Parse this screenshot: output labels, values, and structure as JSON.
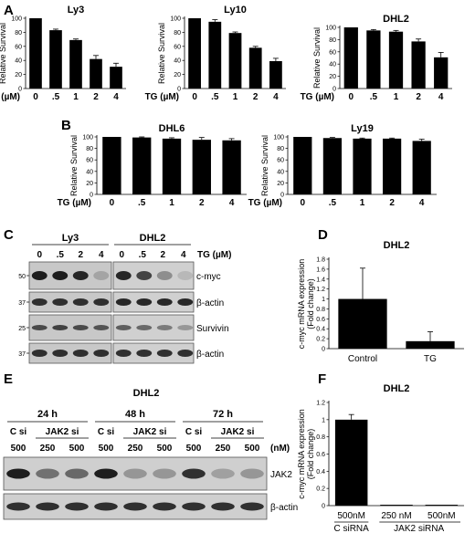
{
  "panels": {
    "A": "A",
    "B": "B",
    "C": "C",
    "D": "D",
    "E": "E",
    "F": "F"
  },
  "chart_data": [
    {
      "panel": "A",
      "type": "bar",
      "title": "Ly3",
      "ylabel": "Relative Survival",
      "xlabel": "TG (µM)",
      "categories": [
        "0",
        ".5",
        "1",
        "2",
        "4"
      ],
      "values": [
        100,
        83,
        69,
        42,
        31
      ],
      "errors": [
        0,
        1.5,
        1.5,
        5,
        5
      ],
      "yticks": [
        "0",
        "20",
        "40",
        "60",
        "80",
        "100"
      ],
      "ylim": [
        0,
        100
      ]
    },
    {
      "panel": "A",
      "type": "bar",
      "title": "Ly10",
      "ylabel": "Relative Survival",
      "xlabel": "TG (µM)",
      "categories": [
        "0",
        ".5",
        "1",
        "2",
        "4"
      ],
      "values": [
        100,
        95,
        79,
        58,
        39
      ],
      "errors": [
        0,
        3,
        1.5,
        2,
        4
      ],
      "yticks": [
        "0",
        "20",
        "40",
        "60",
        "80",
        "100"
      ],
      "ylim": [
        0,
        100
      ]
    },
    {
      "panel": "A",
      "type": "bar",
      "title": "DHL2",
      "ylabel": "Relative Survival",
      "xlabel": "TG (µM)",
      "categories": [
        "0",
        ".5",
        "1",
        "2",
        "4"
      ],
      "values": [
        100,
        95,
        93,
        77,
        51
      ],
      "errors": [
        0,
        1.5,
        2,
        4,
        8
      ],
      "yticks": [
        "0",
        "20",
        "40",
        "60",
        "80",
        "100"
      ],
      "ylim": [
        0,
        100
      ]
    },
    {
      "panel": "B",
      "type": "bar",
      "title": "DHL6",
      "ylabel": "Relative Survival",
      "xlabel": "TG (µM)",
      "categories": [
        "0",
        ".5",
        "1",
        "2",
        "4"
      ],
      "values": [
        100,
        99,
        97,
        95,
        94
      ],
      "errors": [
        0,
        1,
        1.5,
        4,
        3
      ],
      "yticks": [
        "0",
        "20",
        "40",
        "60",
        "80",
        "100"
      ],
      "ylim": [
        0,
        100
      ]
    },
    {
      "panel": "B",
      "type": "bar",
      "title": "Ly19",
      "ylabel": "Relative Survival",
      "xlabel": "TG (µM)",
      "categories": [
        "0",
        ".5",
        "1",
        "2",
        "4"
      ],
      "values": [
        100,
        98,
        97,
        97,
        93
      ],
      "errors": [
        0,
        1,
        1,
        1,
        3
      ],
      "yticks": [
        "0",
        "20",
        "40",
        "60",
        "80",
        "100"
      ],
      "ylim": [
        0,
        100
      ]
    },
    {
      "panel": "D",
      "type": "bar",
      "title": "DHL2",
      "ylabel": "c-myc mRNA expression\n(Fold change)",
      "categories": [
        "Control",
        "TG"
      ],
      "values": [
        1.0,
        0.15
      ],
      "errors": [
        0.62,
        0.19
      ],
      "yticks": [
        "0",
        "0.2",
        "0.4",
        "0.6",
        "0.8",
        "1",
        "1.2",
        "1.4",
        "1.6",
        "1.8"
      ],
      "ylim": [
        0,
        1.8
      ]
    },
    {
      "panel": "F",
      "type": "bar",
      "title": "DHL2",
      "ylabel": "c-myc mRNA expression\n(Fold change)",
      "categories": [
        "500nM",
        "250 nM",
        "500nM"
      ],
      "groups": [
        "C siRNA",
        "JAK2 siRNA"
      ],
      "values": [
        1.0,
        0.01,
        0.01
      ],
      "errors": [
        0.06,
        0,
        0
      ],
      "yticks": [
        "0",
        "0.2",
        "0.4",
        "0.6",
        "0.8",
        "1",
        "1.2"
      ],
      "ylim": [
        0,
        1.2
      ]
    }
  ],
  "blot_C": {
    "group1": "Ly3",
    "group2": "DHL2",
    "tg_label": "TG (µM)",
    "lanes1": [
      "0",
      ".5",
      "2",
      "4"
    ],
    "lanes2": [
      "0",
      ".5",
      "2",
      "4"
    ],
    "mw": [
      "50",
      "37",
      "25",
      "37"
    ],
    "rows": [
      "c-myc",
      "β-actin",
      "Survivin",
      "β-actin"
    ]
  },
  "blot_E": {
    "title": "DHL2",
    "times": [
      "24 h",
      "48 h",
      "72 h"
    ],
    "si": [
      "C si",
      "JAK2 si",
      "C si",
      "JAK2 si",
      "C si",
      "JAK2 si"
    ],
    "conc": [
      "500",
      "250",
      "500",
      "500",
      "250",
      "500",
      "500",
      "250",
      "500"
    ],
    "unit": "(nM)",
    "rows": [
      "JAK2",
      "β-actin"
    ]
  }
}
